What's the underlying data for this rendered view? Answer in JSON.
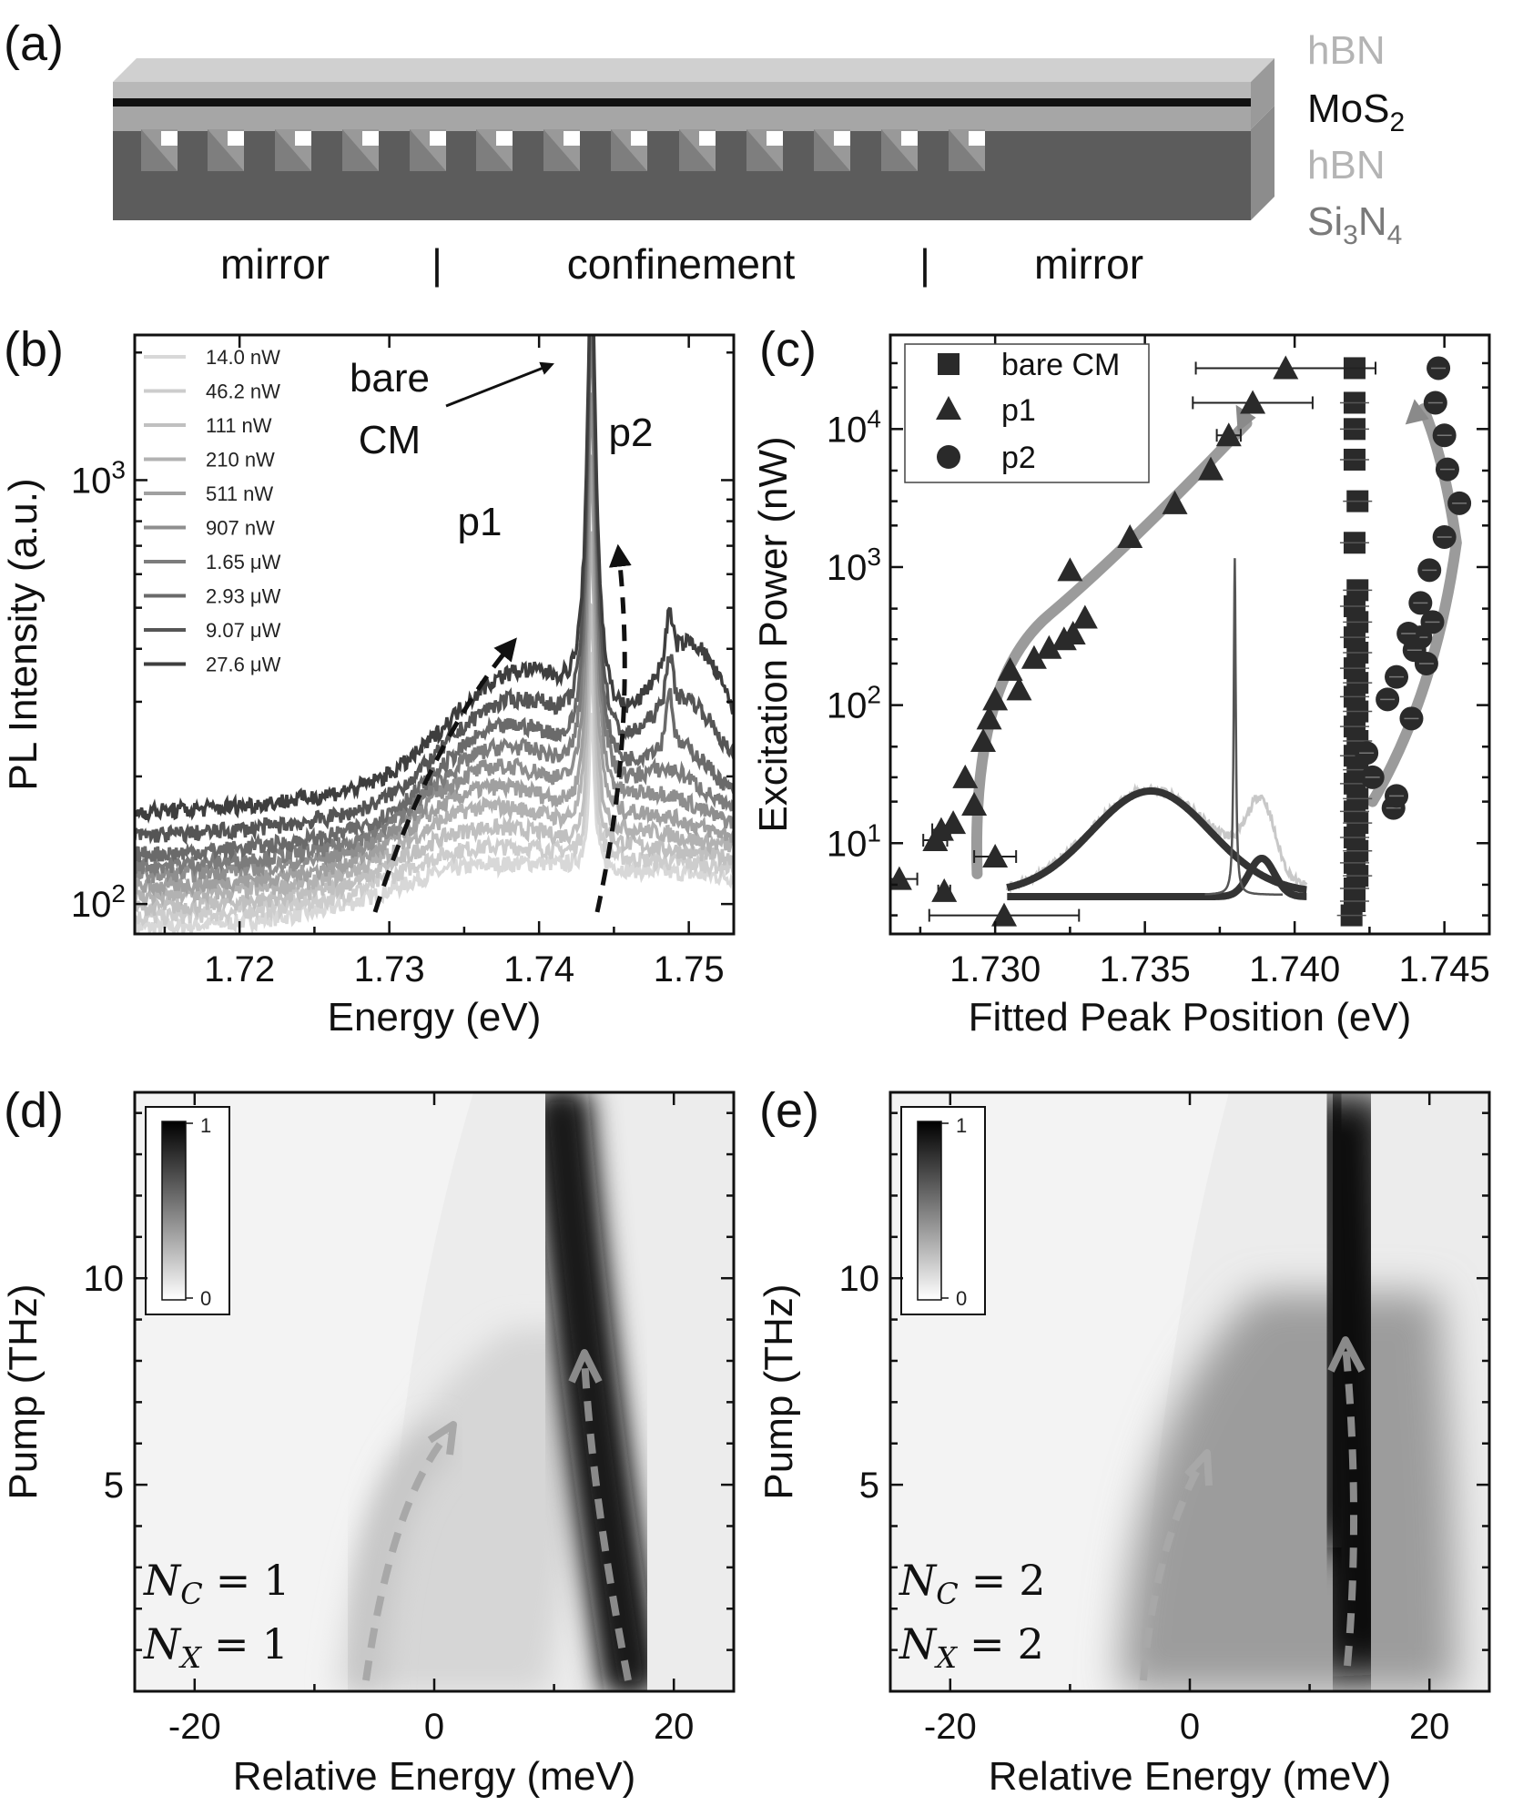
{
  "panel_labels": {
    "a": "(a)",
    "b": "(b)",
    "c": "(c)",
    "d": "(d)",
    "e": "(e)"
  },
  "device": {
    "layers": [
      {
        "name": "hBN",
        "sub": "",
        "color": "#b4b4b4"
      },
      {
        "name": "MoS",
        "sub": "2",
        "color": "#111111"
      },
      {
        "name": "hBN",
        "sub": "",
        "color": "#b4b4b4"
      },
      {
        "name": "Si",
        "sub": "3",
        "name2": "N",
        "sub2": "4",
        "color": "#7a7a7a"
      }
    ],
    "regions": [
      "mirror",
      "|",
      "confinement",
      "|",
      "mirror"
    ]
  },
  "chart_data": [
    {
      "panel": "b",
      "type": "line",
      "xlabel": "Energy (eV)",
      "ylabel": "PL Intensity (a.u.)",
      "xlim": [
        1.713,
        1.753
      ],
      "ylim": [
        85,
        2200
      ],
      "yscale": "log",
      "x_ticks": [
        "1.72",
        "1.73",
        "1.74",
        "1.75"
      ],
      "y_ticks": [
        {
          "label": "10",
          "sup": "2"
        },
        {
          "label": "10",
          "sup": "3"
        }
      ],
      "series": [
        {
          "name": "14.0 nW",
          "color": "#d8d8d8",
          "base": 88,
          "p1": 12,
          "cm": 160,
          "p2": 0
        },
        {
          "name": "46.2 nW",
          "color": "#cdcdcd",
          "base": 93,
          "p1": 18,
          "cm": 260,
          "p2": 0
        },
        {
          "name": "111 nW",
          "color": "#c0c0c0",
          "base": 98,
          "p1": 26,
          "cm": 400,
          "p2": 3
        },
        {
          "name": "210 nW",
          "color": "#b2b2b2",
          "base": 104,
          "p1": 36,
          "cm": 620,
          "p2": 6
        },
        {
          "name": "511 nW",
          "color": "#a0a0a0",
          "base": 110,
          "p1": 46,
          "cm": 1000,
          "p2": 12
        },
        {
          "name": "907 nW",
          "color": "#8e8e8e",
          "base": 117,
          "p1": 58,
          "cm": 1500,
          "p2": 22
        },
        {
          "name": "1.65 μW",
          "color": "#7c7c7c",
          "base": 123,
          "p1": 72,
          "cm": 2100,
          "p2": 38
        },
        {
          "name": "2.93 μW",
          "color": "#6a6a6a",
          "base": 131,
          "p1": 88,
          "cm": 2600,
          "p2": 60
        },
        {
          "name": "9.07 μW",
          "color": "#555555",
          "base": 145,
          "p1": 108,
          "cm": 3000,
          "p2": 110
        },
        {
          "name": "27.6 μW",
          "color": "#3e3e3e",
          "base": 165,
          "p1": 130,
          "cm": 3400,
          "p2": 190
        }
      ],
      "annotations": {
        "bare_cm_line1": "bare",
        "bare_cm_line2": "CM",
        "p1": "p1",
        "p2": "p2"
      }
    },
    {
      "panel": "c",
      "type": "scatter",
      "xlabel": "Fitted Peak Position (eV)",
      "ylabel": "Excitation Power (nW)",
      "xlim": [
        1.7265,
        1.7465
      ],
      "ylim": [
        2.2,
        48000
      ],
      "yscale": "log",
      "x_ticks": [
        "1.730",
        "1.735",
        "1.740",
        "1.745"
      ],
      "y_ticks": [
        {
          "label": "10",
          "sup": "1"
        },
        {
          "label": "10",
          "sup": "2"
        },
        {
          "label": "10",
          "sup": "3"
        },
        {
          "label": "10",
          "sup": "4"
        }
      ],
      "legend": [
        "bare CM",
        "p1",
        "p2"
      ],
      "series": [
        {
          "name": "bare CM",
          "marker": "square",
          "points": [
            [
              1.7419,
              3.0
            ],
            [
              1.742,
              3.8
            ],
            [
              1.742,
              4.7
            ],
            [
              1.7421,
              5.8
            ],
            [
              1.742,
              7.2
            ],
            [
              1.7421,
              8.8
            ],
            [
              1.742,
              11
            ],
            [
              1.7421,
              14
            ],
            [
              1.742,
              17
            ],
            [
              1.7421,
              21
            ],
            [
              1.742,
              27
            ],
            [
              1.7421,
              34
            ],
            [
              1.742,
              43
            ],
            [
              1.7421,
              55
            ],
            [
              1.742,
              70
            ],
            [
              1.7421,
              90
            ],
            [
              1.742,
              115
            ],
            [
              1.7421,
              145
            ],
            [
              1.742,
              185
            ],
            [
              1.7421,
              240
            ],
            [
              1.742,
              310
            ],
            [
              1.7421,
              400
            ],
            [
              1.742,
              520
            ],
            [
              1.7421,
              680
            ],
            [
              1.742,
              1500
            ],
            [
              1.7421,
              3000
            ],
            [
              1.742,
              6000
            ],
            [
              1.742,
              10000
            ],
            [
              1.742,
              15500
            ],
            [
              1.742,
              27600
            ]
          ]
        },
        {
          "name": "p1",
          "marker": "triangle",
          "points": [
            [
              1.7303,
              3.0,
              2.5
            ],
            [
              1.7268,
              5.5,
              0.6
            ],
            [
              1.7283,
              4.5,
              0.2
            ],
            [
              1.73,
              8.0,
              0.7
            ],
            [
              1.728,
              10.5,
              0.4
            ],
            [
              1.7282,
              12.5,
              0.3
            ],
            [
              1.7286,
              14,
              0
            ],
            [
              1.7293,
              19,
              0
            ],
            [
              1.729,
              30,
              0
            ],
            [
              1.7296,
              55,
              0
            ],
            [
              1.7298,
              80,
              0
            ],
            [
              1.73,
              110,
              0
            ],
            [
              1.7308,
              130,
              0
            ],
            [
              1.7305,
              180,
              0
            ],
            [
              1.7313,
              220,
              0
            ],
            [
              1.7318,
              260,
              0
            ],
            [
              1.7323,
              300,
              0
            ],
            [
              1.7326,
              330,
              0
            ],
            [
              1.733,
              430,
              0
            ],
            [
              1.7325,
              950,
              0
            ],
            [
              1.7345,
              1650,
              0
            ],
            [
              1.736,
              2900,
              0
            ],
            [
              1.7372,
              5100,
              0
            ],
            [
              1.7378,
              9000,
              0.4
            ],
            [
              1.7386,
              15500,
              2.0
            ],
            [
              1.7397,
              27600,
              3.0
            ]
          ]
        },
        {
          "name": "p2",
          "marker": "circle",
          "points": [
            [
              1.7433,
              18
            ],
            [
              1.7434,
              22
            ],
            [
              1.7426,
              30
            ],
            [
              1.7424,
              45
            ],
            [
              1.7439,
              80
            ],
            [
              1.7431,
              110
            ],
            [
              1.7434,
              160
            ],
            [
              1.7444,
              200
            ],
            [
              1.744,
              250
            ],
            [
              1.7442,
              310
            ],
            [
              1.7438,
              330
            ],
            [
              1.7446,
              400
            ],
            [
              1.7442,
              550
            ],
            [
              1.7445,
              950
            ],
            [
              1.745,
              1650
            ],
            [
              1.7455,
              2900
            ],
            [
              1.7451,
              5100
            ],
            [
              1.745,
              9000
            ],
            [
              1.7447,
              15500
            ],
            [
              1.7448,
              27600
            ]
          ]
        }
      ]
    },
    {
      "panel": "d",
      "type": "heatmap",
      "xlabel": "Relative Energy (meV)",
      "ylabel": "Pump (THz)",
      "xlim": [
        -25,
        25
      ],
      "ylim": [
        0,
        14.5
      ],
      "x_ticks": [
        "-20",
        "0",
        "20"
      ],
      "y_ticks": [
        "5",
        "10"
      ],
      "colorbar": {
        "min": "0",
        "max": "1"
      },
      "label": {
        "n_c": "1",
        "n_x": "1"
      }
    },
    {
      "panel": "e",
      "type": "heatmap",
      "xlabel": "Relative Energy (meV)",
      "ylabel": "Pump (THz)",
      "xlim": [
        -25,
        25
      ],
      "ylim": [
        0,
        14.5
      ],
      "x_ticks": [
        "-20",
        "0",
        "20"
      ],
      "y_ticks": [
        "5",
        "10"
      ],
      "colorbar": {
        "min": "0",
        "max": "1"
      },
      "label": {
        "n_c": "2",
        "n_x": "2"
      }
    }
  ],
  "math": {
    "nc_symbol": "N",
    "nc_sub": "C",
    "nx_symbol": "N",
    "nx_sub": "X",
    "eq": "="
  }
}
